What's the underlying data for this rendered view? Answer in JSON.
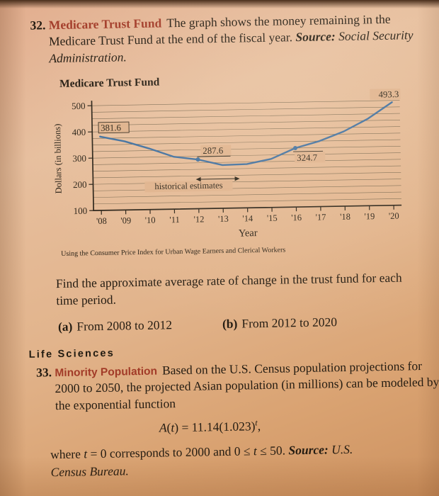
{
  "colors": {
    "problem_title": "#a23b28",
    "ink": "#2b2318"
  },
  "section_heading": "Life Sciences",
  "problems": {
    "p32": {
      "number": "32.",
      "title": "Medicare Trust Fund",
      "body_parts": [
        {
          "t": "The graph shows the money remaining in the Medicare Trust Fund at the end of the fiscal year. "
        },
        {
          "t": "Source:",
          "b": true,
          "i": true
        },
        {
          "t": " Social Security Administration.",
          "i": true
        }
      ],
      "tasks": {
        "prompt": "Find the approximate average rate of change in the trust fund for each time period.",
        "a_label": "(a)",
        "a_text": "From 2008 to 2012",
        "b_label": "(b)",
        "b_text": "From 2012 to 2020"
      }
    },
    "p33": {
      "number": "33.",
      "title": "Minority Population",
      "body": "Based on the U.S. Census population projections for 2000 to 2050, the projected Asian population (in millions) can be modeled by the exponential function",
      "equation_parts": [
        {
          "t": "A",
          "i": true
        },
        {
          "t": "("
        },
        {
          "t": "t",
          "i": true
        },
        {
          "t": ") = 11.14(1.023)"
        },
        {
          "t": "t",
          "i": true,
          "sup": true
        },
        {
          "t": ","
        }
      ],
      "footer_parts": [
        {
          "t": "where "
        },
        {
          "t": "t",
          "i": true
        },
        {
          "t": " = 0 corresponds to 2000 and 0 ≤ "
        },
        {
          "t": "t",
          "i": true
        },
        {
          "t": " ≤ 50. "
        },
        {
          "t": "Source:",
          "b": true,
          "i": true
        },
        {
          "t": " U.S. Census Bureau.",
          "i": true
        }
      ]
    }
  },
  "chart_data": {
    "type": "line",
    "title": "Medicare Trust Fund",
    "ylabel": "Dollars (in billions)",
    "xlabel": "Year",
    "x": [
      2008,
      2009,
      2010,
      2011,
      2012,
      2013,
      2014,
      2015,
      2016,
      2017,
      2018,
      2019,
      2020
    ],
    "x_tick_labels": [
      "'08",
      "'09",
      "'10",
      "'11",
      "'12",
      "'13",
      "'14",
      "'15",
      "'16",
      "'17",
      "'18",
      "'19",
      "'20"
    ],
    "values": [
      381.6,
      362,
      333,
      300,
      287.6,
      265,
      267,
      285,
      324.7,
      350,
      385,
      432,
      493.3
    ],
    "ylim": [
      100,
      500
    ],
    "yticks": [
      100,
      200,
      300,
      400,
      500
    ],
    "grid": "horizontal-stripes-every-25",
    "legend_position": "none",
    "line_color": "#3f6f9f",
    "labeled_points": [
      {
        "year": 2008,
        "value": 381.6,
        "label": "381.6",
        "dot": false
      },
      {
        "year": 2012,
        "value": 287.6,
        "label": "287.6",
        "dot": true
      },
      {
        "year": 2016,
        "value": 324.7,
        "label": "324.7",
        "dot": true
      },
      {
        "year": 2020,
        "value": 493.3,
        "label": "493.3",
        "dot": false
      }
    ],
    "annotation": "historical estimates",
    "caption": "Using the Consumer Price Index for Urban Wage Earners and Clerical Workers"
  }
}
